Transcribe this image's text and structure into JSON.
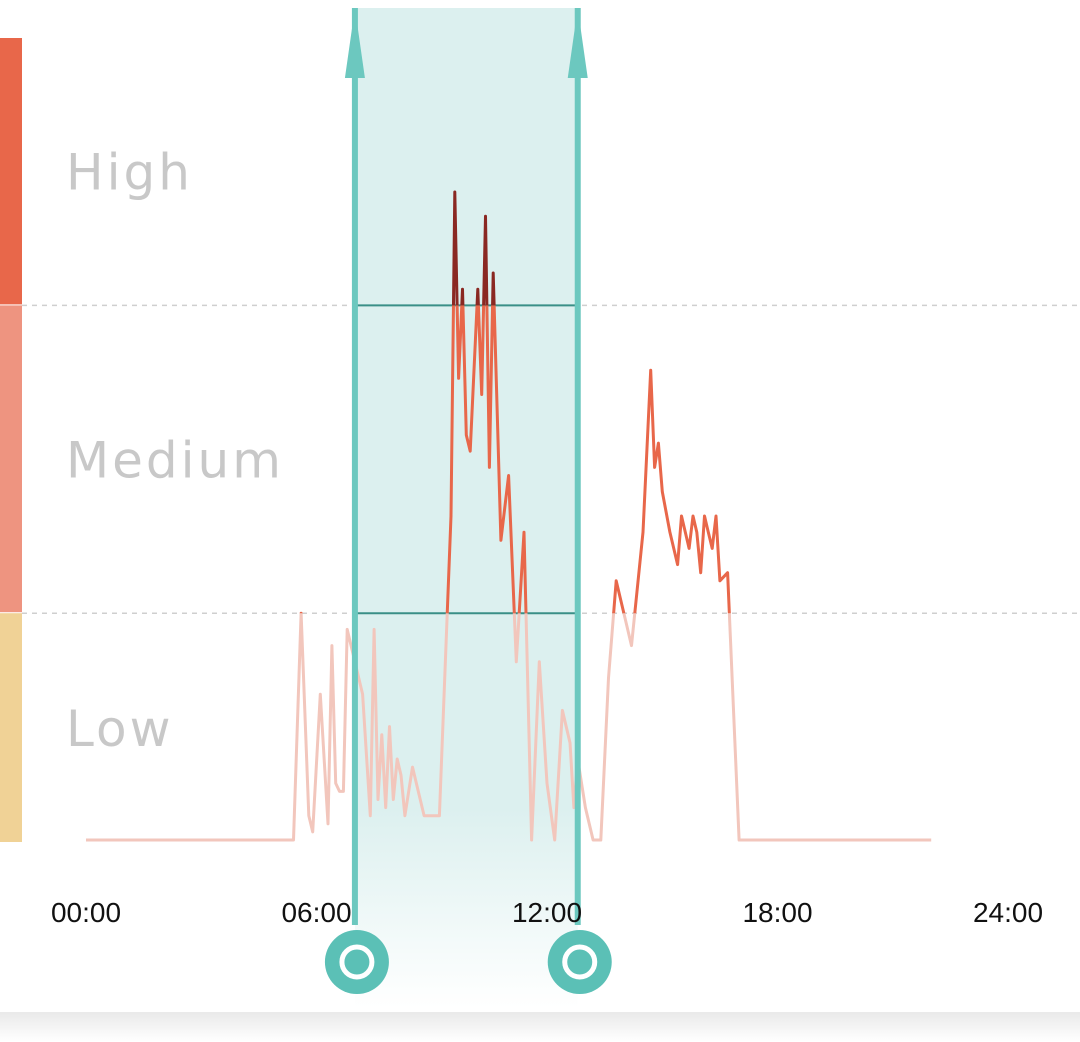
{
  "chart_data": {
    "type": "line",
    "x_unit": "hour of day",
    "x_range": [
      0,
      24
    ],
    "y_range": [
      0,
      100
    ],
    "x_ticks": [
      "00:00",
      "06:00",
      "12:00",
      "18:00",
      "24:00"
    ],
    "x_tick_values": [
      0,
      6,
      12,
      18,
      24
    ],
    "levels": [
      {
        "label": "High",
        "from": 66,
        "to": 100,
        "color": "#e8674a"
      },
      {
        "label": "Medium",
        "from": 28,
        "to": 66,
        "color": "#ee9480"
      },
      {
        "label": "Low",
        "from": 0,
        "to": 28,
        "color": "#f0d296"
      }
    ],
    "thresholds": [
      28,
      66
    ],
    "selection": {
      "start": 7.0,
      "end": 12.8
    },
    "series": [
      {
        "x": [
          0.0,
          5.4,
          5.6,
          5.8,
          5.9,
          6.1,
          6.3,
          6.4,
          6.5,
          6.6,
          6.7,
          6.8,
          7.0,
          7.2,
          7.4,
          7.5,
          7.6,
          7.7,
          7.8,
          7.9,
          8.0,
          8.1,
          8.2,
          8.3,
          8.5,
          8.8,
          9.2,
          9.5,
          9.6,
          9.7,
          9.8,
          9.9,
          10.0,
          10.1,
          10.2,
          10.3,
          10.4,
          10.5,
          10.6,
          10.8,
          11.0,
          11.2,
          11.4,
          11.6,
          11.8,
          12.0,
          12.2,
          12.4,
          12.6,
          12.7,
          12.8,
          13.0,
          13.2,
          13.4,
          13.6,
          13.8,
          14.2,
          14.5,
          14.7,
          14.8,
          14.9,
          15.0,
          15.2,
          15.4,
          15.5,
          15.6,
          15.7,
          15.8,
          15.9,
          16.0,
          16.1,
          16.2,
          16.3,
          16.4,
          16.5,
          16.7,
          17.0,
          22.0
        ],
        "y": [
          0,
          0,
          28,
          3,
          1,
          18,
          2,
          24,
          7,
          6,
          6,
          26,
          22,
          18,
          3,
          26,
          5,
          13,
          4,
          14,
          5,
          10,
          8,
          3,
          9,
          3,
          3,
          40,
          80,
          57,
          68,
          50,
          48,
          58,
          68,
          55,
          77,
          46,
          70,
          37,
          45,
          22,
          38,
          0,
          22,
          7,
          0,
          16,
          12,
          4,
          10,
          4,
          0,
          0,
          20,
          32,
          24,
          38,
          58,
          46,
          49,
          43,
          38,
          34,
          40,
          38,
          36,
          40,
          38,
          33,
          40,
          38,
          36,
          40,
          32,
          33,
          0,
          0
        ]
      }
    ]
  },
  "colors": {
    "line_low": "#f2c6bc",
    "line_medium": "#e8674a",
    "line_high": "#8a2822",
    "selection_fill": "#dcf0ef",
    "selection_edge": "#6cc8bf",
    "handle": "#5bc0b6"
  }
}
